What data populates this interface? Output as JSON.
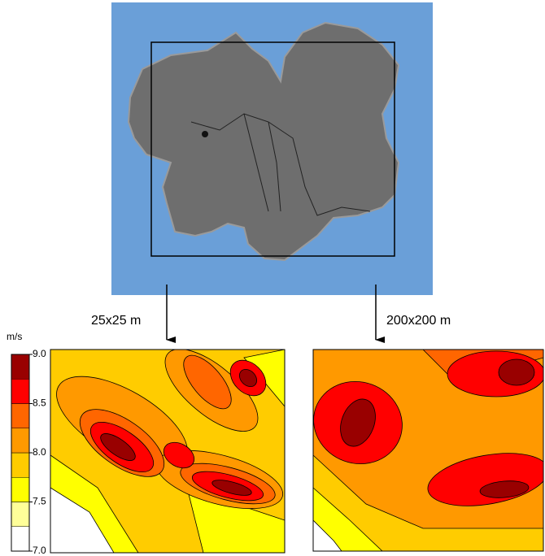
{
  "labels": {
    "left_resolution": "25x25 m",
    "right_resolution": "200x200 m"
  },
  "colorbar": {
    "unit": "m/s",
    "lim": [
      7,
      9
    ],
    "ticks": [
      {
        "value": 7,
        "label": "7.0"
      },
      {
        "value": 7.5,
        "label": "7.5"
      },
      {
        "value": 8,
        "label": "8.0"
      },
      {
        "value": 8.5,
        "label": "8.5"
      },
      {
        "value": 9,
        "label": "9.0"
      }
    ],
    "levels": [
      {
        "from": 7,
        "to": 7.25,
        "color": "#ffffff"
      },
      {
        "from": 7.25,
        "to": 7.5,
        "color": "#ffff99"
      },
      {
        "from": 7.5,
        "to": 7.75,
        "color": "#ffff00"
      },
      {
        "from": 7.75,
        "to": 8,
        "color": "#ffcc00"
      },
      {
        "from": 8,
        "to": 8.25,
        "color": "#ff9900"
      },
      {
        "from": 8.25,
        "to": 8.5,
        "color": "#ff6600"
      },
      {
        "from": 8.5,
        "to": 8.75,
        "color": "#ff0000"
      },
      {
        "from": 8.75,
        "to": 9,
        "color": "#990000"
      }
    ]
  }
}
